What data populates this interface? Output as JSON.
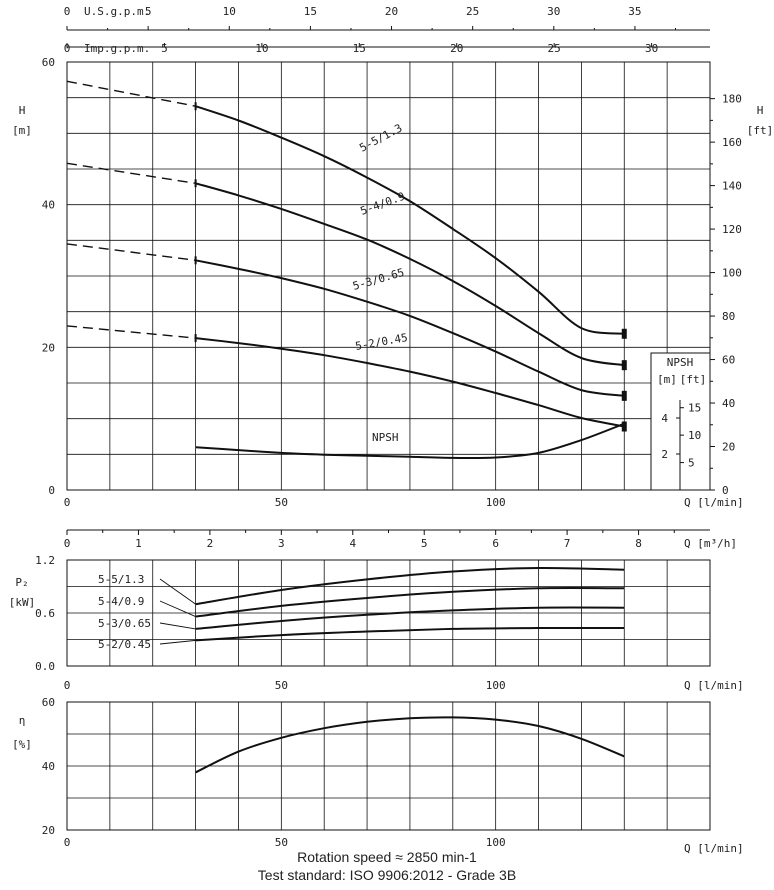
{
  "chart_data": [
    {
      "type": "line",
      "name": "performance",
      "xlim": [
        0,
        150
      ],
      "ylim": [
        0,
        60
      ],
      "x_ticks": [
        0,
        50,
        100
      ],
      "y_ticks": [
        0,
        20,
        40,
        60
      ],
      "xlabel": "Q [l/min]",
      "ylabel_left": [
        "H",
        "[m]"
      ],
      "ylabel_right": [
        "H",
        "[ft]"
      ],
      "ft_ticks": [
        0,
        20,
        40,
        60,
        80,
        100,
        120,
        140,
        160,
        180
      ],
      "usgpm_label": "U.S.g.p.m.",
      "usgpm_ticks": [
        0,
        5,
        10,
        15,
        20,
        25,
        30,
        35
      ],
      "impgpm_label": "Imp.g.p.m.",
      "impgpm_ticks": [
        0,
        5,
        10,
        15,
        20,
        25,
        30
      ],
      "m3h_label": "Q [m³/h]",
      "m3h_ticks": [
        0,
        1,
        2,
        3,
        4,
        5,
        6,
        7,
        8
      ],
      "series": [
        {
          "name": "5-5/1.3",
          "dashed_x": [
            0,
            30
          ],
          "dashed_y": [
            57.3,
            53.8
          ],
          "x": [
            30,
            40,
            50,
            60,
            70,
            80,
            90,
            100,
            110,
            120,
            130
          ],
          "y": [
            53.8,
            51.8,
            49.4,
            46.8,
            43.8,
            40.5,
            36.6,
            32.5,
            27.8,
            22.7,
            21.9
          ]
        },
        {
          "name": "5-4/0.9",
          "dashed_x": [
            0,
            30
          ],
          "dashed_y": [
            45.8,
            43.0
          ],
          "x": [
            30,
            40,
            50,
            60,
            70,
            80,
            90,
            100,
            110,
            120,
            130
          ],
          "y": [
            43.0,
            41.3,
            39.4,
            37.3,
            35.1,
            32.4,
            29.3,
            25.8,
            22.0,
            18.5,
            17.5
          ]
        },
        {
          "name": "5-3/0.65",
          "dashed_x": [
            0,
            30
          ],
          "dashed_y": [
            34.5,
            32.2
          ],
          "x": [
            30,
            40,
            50,
            60,
            70,
            80,
            90,
            100,
            110,
            120,
            130
          ],
          "y": [
            32.2,
            31.0,
            29.7,
            28.2,
            26.4,
            24.4,
            22.0,
            19.4,
            16.6,
            14.0,
            13.2
          ]
        },
        {
          "name": "5-2/0.45",
          "dashed_x": [
            0,
            30
          ],
          "dashed_y": [
            23.0,
            21.3
          ],
          "x": [
            30,
            40,
            50,
            60,
            70,
            80,
            90,
            100,
            110,
            120,
            130
          ],
          "y": [
            21.3,
            20.6,
            19.8,
            18.9,
            17.8,
            16.6,
            15.2,
            13.6,
            11.9,
            10.1,
            8.9
          ]
        }
      ],
      "npsh": {
        "label": "NPSH",
        "x": [
          30,
          40,
          50,
          60,
          70,
          80,
          90,
          100,
          110,
          120,
          130
        ],
        "y_m": [
          6.0,
          5.6,
          5.2,
          4.95,
          4.8,
          4.65,
          4.5,
          4.55,
          5.2,
          7.0,
          9.3
        ],
        "box_title": "NPSH",
        "box_unit_m": "[m]",
        "box_unit_ft": "[ft]",
        "m_ticks": [
          2,
          4
        ],
        "ft_ticks": [
          5,
          10,
          15
        ]
      }
    },
    {
      "type": "line",
      "name": "power",
      "xlim": [
        0,
        150
      ],
      "ylim": [
        0,
        1.2
      ],
      "y_ticks": [
        "0.0",
        "0.6",
        "1.2"
      ],
      "x_ticks": [
        0,
        50,
        100
      ],
      "xlabel": "Q [l/min]",
      "ylabel": [
        "P₂",
        "[kW]"
      ],
      "series": [
        {
          "name": "5-5/1.3",
          "x": [
            30,
            50,
            70,
            90,
            110,
            130
          ],
          "y": [
            0.7,
            0.86,
            0.98,
            1.07,
            1.11,
            1.09
          ]
        },
        {
          "name": "5-4/0.9",
          "x": [
            30,
            50,
            70,
            90,
            110,
            130
          ],
          "y": [
            0.56,
            0.68,
            0.77,
            0.84,
            0.88,
            0.88
          ]
        },
        {
          "name": "5-3/0.65",
          "x": [
            30,
            50,
            70,
            90,
            110,
            130
          ],
          "y": [
            0.42,
            0.51,
            0.58,
            0.63,
            0.66,
            0.66
          ]
        },
        {
          "name": "5-2/0.45",
          "x": [
            30,
            50,
            70,
            90,
            110,
            130
          ],
          "y": [
            0.29,
            0.35,
            0.39,
            0.42,
            0.43,
            0.43
          ]
        }
      ]
    },
    {
      "type": "line",
      "name": "efficiency",
      "xlim": [
        0,
        150
      ],
      "ylim": [
        20,
        60
      ],
      "y_ticks": [
        20,
        40,
        60
      ],
      "x_ticks": [
        0,
        50,
        100
      ],
      "xlabel": "Q [l/min]",
      "ylabel": [
        "η",
        "[%]"
      ],
      "series": [
        {
          "name": "η",
          "x": [
            30,
            40,
            50,
            60,
            70,
            80,
            90,
            100,
            110,
            120,
            130
          ],
          "y": [
            38.0,
            44.5,
            48.8,
            51.8,
            53.8,
            54.9,
            55.2,
            54.5,
            52.5,
            48.5,
            43.0
          ]
        }
      ]
    }
  ],
  "footer": {
    "line1": "Rotation speed ≈ 2850 min-1",
    "line2": "Test standard: ISO 9906:2012 - Grade 3B"
  }
}
